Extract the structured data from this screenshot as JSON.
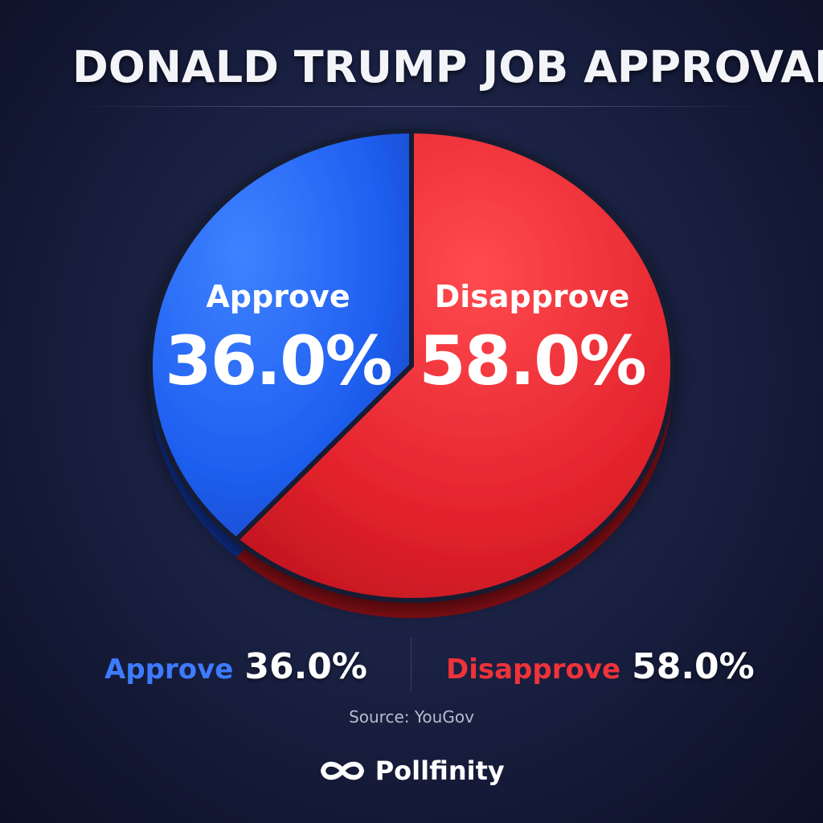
{
  "chart_data": {
    "type": "pie",
    "title": "DONALD TRUMP JOB APPROVAL",
    "slices": [
      {
        "label": "Approve",
        "value": 36.0,
        "display": "36.0%",
        "color": "#1f5ff0"
      },
      {
        "label": "Disapprove",
        "value": 58.0,
        "display": "58.0%",
        "color": "#e3222c"
      }
    ],
    "legend": [
      {
        "label": "Approve",
        "value": "36.0%",
        "color": "#3d7bff"
      },
      {
        "label": "Disapprove",
        "value": "58.0%",
        "color": "#ee3339"
      }
    ],
    "legend_placement": "bottom"
  },
  "source": "Source: YouGov",
  "brand": {
    "name": "Pollfinity",
    "icon": "infinity-icon"
  },
  "colors": {
    "approve": "#1f5ff0",
    "disapprove": "#e3222c",
    "background": "#1a2044"
  }
}
